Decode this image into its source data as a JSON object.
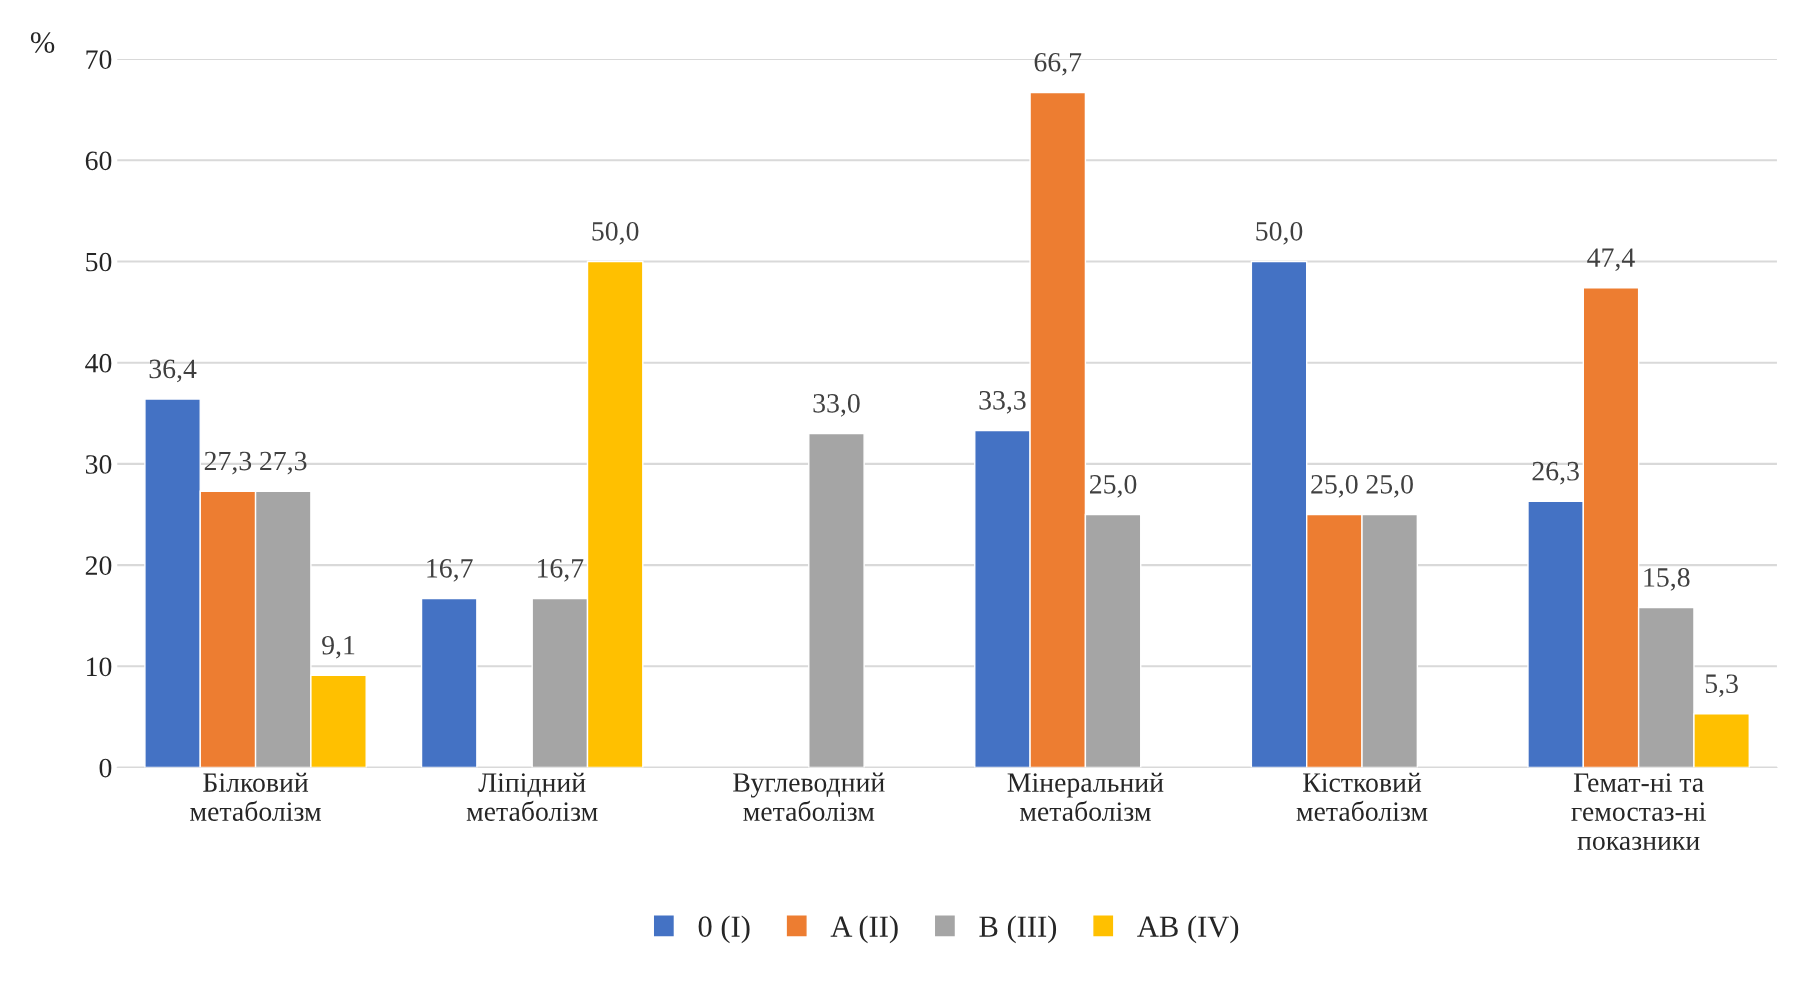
{
  "chart_data": {
    "type": "bar",
    "ylabel": "%",
    "categories": [
      "Білковий\nметаболізм",
      "Ліпідний\nметаболізм",
      "Вуглеводний\nметаболізм",
      "Мінеральний\nметаболізм",
      "Кістковий\nметаболізм",
      "Гемат-ні та\nгемостаз-ні\nпоказники"
    ],
    "series": [
      {
        "name": "0 (I)",
        "color": "#4472c4",
        "values": [
          36.4,
          16.7,
          null,
          33.3,
          50.0,
          26.3
        ],
        "value_labels": [
          "36,4",
          "16,7",
          null,
          "33,3",
          "50,0",
          "26,3"
        ]
      },
      {
        "name": "A (II)",
        "color": "#ed7d31",
        "values": [
          27.3,
          null,
          null,
          66.7,
          25.0,
          47.4
        ],
        "value_labels": [
          "27,3",
          null,
          null,
          "66,7",
          "25,0",
          "47,4"
        ]
      },
      {
        "name": "B (III)",
        "color": "#a5a5a5",
        "values": [
          27.3,
          16.7,
          33.0,
          25.0,
          25.0,
          15.8
        ],
        "value_labels": [
          "27,3",
          "16,7",
          "33,0",
          "25,0",
          "25,0",
          "15,8"
        ]
      },
      {
        "name": "AB (IV)",
        "color": "#ffc000",
        "values": [
          9.1,
          50.0,
          null,
          null,
          null,
          5.3
        ],
        "value_labels": [
          "9,1",
          "50,0",
          null,
          null,
          null,
          "5,3"
        ]
      }
    ],
    "ylim": [
      0,
      70
    ],
    "yticks": [
      0,
      10,
      20,
      30,
      40,
      50,
      60,
      70
    ],
    "grid": "y",
    "legend": "bottom"
  }
}
